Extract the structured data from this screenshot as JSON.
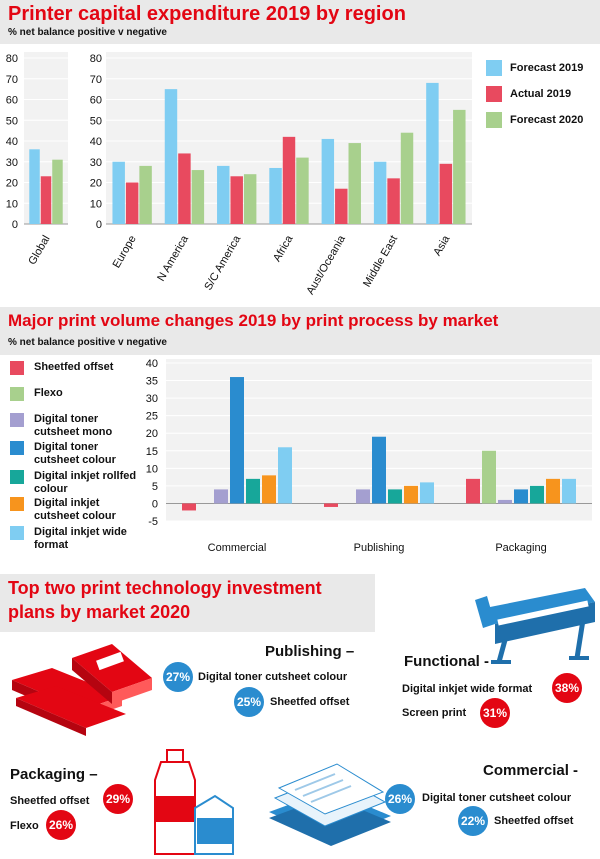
{
  "section1": {
    "title": "Printer capital expenditure 2019 by region",
    "subtitle": "% net balance positive v negative"
  },
  "section2": {
    "title": "Major print volume changes 2019 by print process by market",
    "subtitle": "% net balance positive v negative"
  },
  "section3": {
    "title_line1": "Top two print technology investment",
    "title_line2": "plans by market 2020",
    "markets": [
      {
        "name": "Publishing –",
        "items": [
          {
            "pct": "27%",
            "label": "Digital toner cutsheet colour"
          },
          {
            "pct": "25%",
            "label": "Sheetfed offset"
          }
        ]
      },
      {
        "name": "Functional -",
        "items": [
          {
            "pct": "38%",
            "label": "Digital inkjet wide format"
          },
          {
            "pct": "31%",
            "label": "Screen print"
          }
        ]
      },
      {
        "name": "Packaging –",
        "items": [
          {
            "pct": "29%",
            "label": "Sheetfed offset"
          },
          {
            "pct": "26%",
            "label": "Flexo"
          }
        ]
      },
      {
        "name": "Commercial -",
        "items": [
          {
            "pct": "26%",
            "label": "Digital toner cutsheet colour"
          },
          {
            "pct": "22%",
            "label": "Sheetfed offset"
          }
        ]
      }
    ]
  },
  "colors": {
    "forecast2019": "#7fcdf2",
    "actual2019": "#e84a5f",
    "forecast2020": "#a8d08d",
    "sheetfed": "#e84a5f",
    "flexo": "#a8d08d",
    "tonermono": "#a49fd0",
    "tonercolour": "#2a8ccf",
    "rollfed": "#17a79a",
    "cutsheet": "#f7941d",
    "wideformat": "#7fcdf2",
    "brand_red": "#e30613",
    "brand_blue": "#2a8ccf"
  },
  "chart_data": [
    {
      "type": "bar",
      "title": "Printer capital expenditure 2019 by region",
      "subtitle": "% net balance positive v negative",
      "categories": [
        "Global"
      ],
      "ylim": [
        0,
        80
      ],
      "yticks": [
        0,
        10,
        20,
        30,
        40,
        50,
        60,
        70,
        80
      ],
      "series": [
        {
          "name": "Forecast 2019",
          "values": [
            36
          ]
        },
        {
          "name": "Actual 2019",
          "values": [
            23
          ]
        },
        {
          "name": "Forecast 2020",
          "values": [
            31
          ]
        }
      ]
    },
    {
      "type": "bar",
      "categories": [
        "Europe",
        "N America",
        "S/C America",
        "Africa",
        "Aust/Oceania",
        "Middle East",
        "Asia"
      ],
      "ylim": [
        0,
        80
      ],
      "yticks": [
        0,
        10,
        20,
        30,
        40,
        50,
        60,
        70,
        80
      ],
      "legend": "right",
      "series": [
        {
          "name": "Forecast 2019",
          "values": [
            30,
            65,
            28,
            27,
            41,
            30,
            68
          ]
        },
        {
          "name": "Actual 2019",
          "values": [
            20,
            34,
            23,
            42,
            17,
            22,
            29
          ]
        },
        {
          "name": "Forecast 2020",
          "values": [
            28,
            26,
            24,
            32,
            39,
            44,
            55
          ]
        }
      ]
    },
    {
      "type": "bar",
      "title": "Major print volume changes 2019 by print process by market",
      "subtitle": "% net balance positive v negative",
      "categories": [
        "Commercial",
        "Publishing",
        "Packaging"
      ],
      "ylim": [
        -5,
        40
      ],
      "yticks": [
        -5,
        0,
        5,
        10,
        15,
        20,
        25,
        30,
        35,
        40
      ],
      "legend": "left",
      "series": [
        {
          "name": "Sheetfed offset",
          "values": [
            -2,
            -1,
            7
          ]
        },
        {
          "name": "Flexo",
          "values": [
            0,
            0,
            15
          ]
        },
        {
          "name": "Digital toner cutsheet mono",
          "values": [
            4,
            4,
            1
          ]
        },
        {
          "name": "Digital toner cutsheet colour",
          "values": [
            36,
            19,
            4
          ]
        },
        {
          "name": "Digital inkjet rollfed colour",
          "values": [
            7,
            4,
            5
          ]
        },
        {
          "name": "Digital inkjet cutsheet colour",
          "values": [
            8,
            5,
            7
          ]
        },
        {
          "name": "Digital inkjet wide format",
          "values": [
            16,
            6,
            7
          ]
        }
      ]
    }
  ]
}
